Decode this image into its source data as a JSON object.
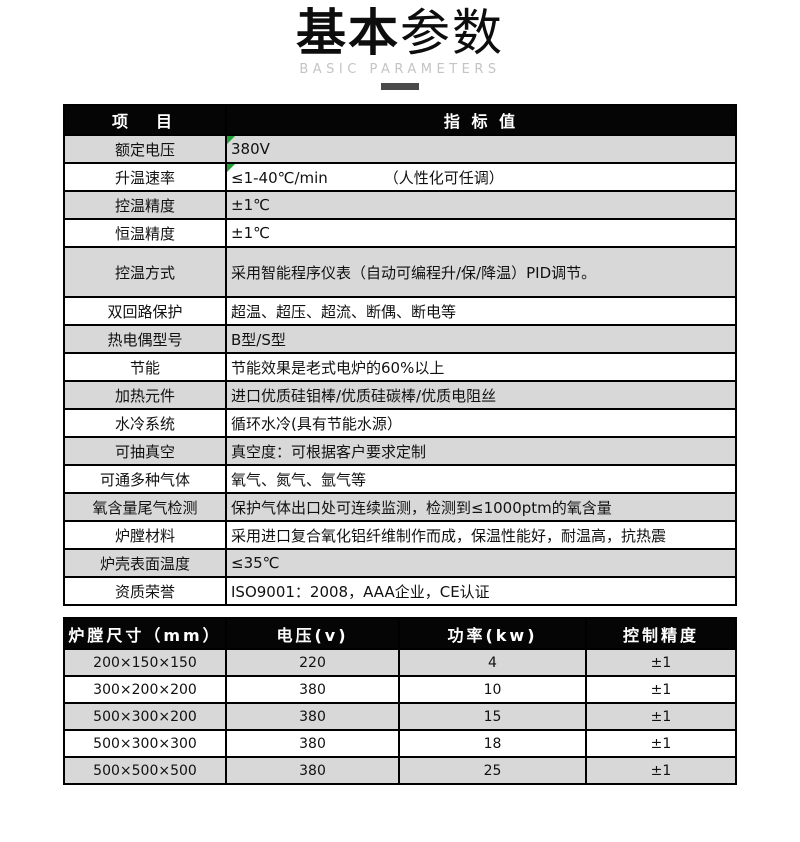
{
  "header": {
    "title_bold": "基本",
    "title_light": "参数",
    "subtitle": "BASIC PARAMETERS"
  },
  "colors": {
    "table_header_bg": "#050505",
    "row_alt_gray": "#d8d8d8",
    "comment_marker_green": "#21a038",
    "subtitle_gray": "#c4c4c4",
    "underline_bar_gray": "#4a4a4a"
  },
  "spec_table": {
    "headers": [
      "项　目",
      "指 标 值"
    ],
    "rows": [
      {
        "label": "额定电压",
        "value": "380V",
        "marker": true
      },
      {
        "label": "升温速率",
        "value": "≤1-40℃/min",
        "note": "（人性化可任调）",
        "marker": true
      },
      {
        "label": "控温精度",
        "value": "±1℃"
      },
      {
        "label": "恒温精度",
        "value": "±1℃"
      },
      {
        "label": "控温方式",
        "value": "采用智能程序仪表（自动可编程升/保/降温）PID调节。",
        "tall": true
      },
      {
        "label": "双回路保护",
        "value": "超温、超压、超流、断偶、断电等"
      },
      {
        "label": "热电偶型号",
        "value": "B型/S型"
      },
      {
        "label": "节能",
        "value": "节能效果是老式电炉的60%以上"
      },
      {
        "label": "加热元件",
        "value": "进口优质硅钼棒/优质硅碳棒/优质电阻丝"
      },
      {
        "label": "水冷系统",
        "value": "循环水冷(具有节能水源）"
      },
      {
        "label": "可抽真空",
        "value": "真空度：可根据客户要求定制"
      },
      {
        "label": "可通多种气体",
        "value": "氧气、氮气、氩气等"
      },
      {
        "label": "氧含量尾气检测",
        "value": "保护气体出口处可连续监测，检测到≤1000ptm的氧含量"
      },
      {
        "label": "炉膛材料",
        "value": "采用进口复合氧化铝纤维制作而成，保温性能好，耐温高，抗热震"
      },
      {
        "label": "炉壳表面温度",
        "value": "≤35℃"
      },
      {
        "label": "资质荣誉",
        "value": "ISO9001：2008，AAA企业，CE认证"
      }
    ]
  },
  "size_table": {
    "headers": [
      "炉膛尺寸（mm）",
      "电压(v)",
      "功率(kw)",
      "控制精度"
    ],
    "rows": [
      [
        "200×150×150",
        "220",
        "4",
        "±1"
      ],
      [
        "300×200×200",
        "380",
        "10",
        "±1"
      ],
      [
        "500×300×200",
        "380",
        "15",
        "±1"
      ],
      [
        "500×300×300",
        "380",
        "18",
        "±1"
      ],
      [
        "500×500×500",
        "380",
        "25",
        "±1"
      ]
    ]
  }
}
